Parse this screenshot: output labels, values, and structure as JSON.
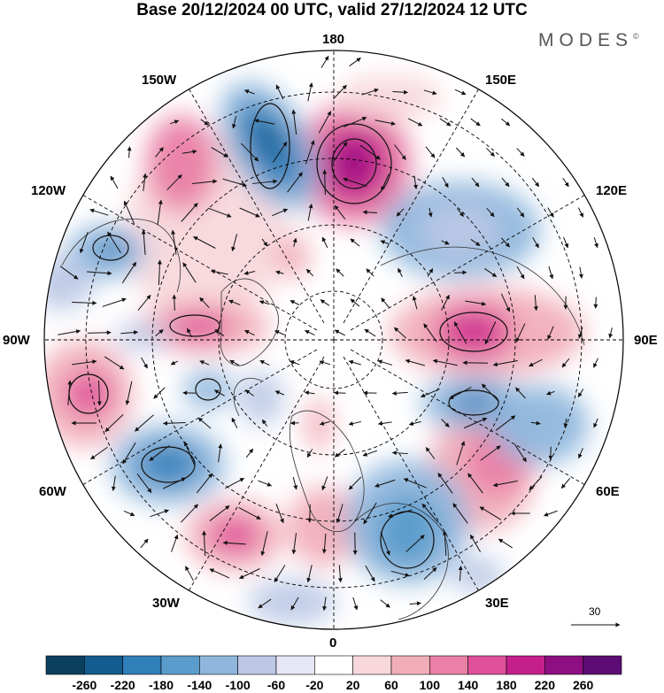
{
  "title": "Base 20/12/2024 00 UTC, valid 27/12/2024 12 UTC",
  "brand": "MODES",
  "brand_mark": "©",
  "longitude_labels": {
    "lon_180": "180",
    "lon_150e": "150E",
    "lon_120e": "120E",
    "lon_90e": "90E",
    "lon_60e": "60E",
    "lon_30e": "30E",
    "lon_0": "0",
    "lon_30w": "30W",
    "lon_60w": "60W",
    "lon_90w": "90W",
    "lon_120w": "120W",
    "lon_150w": "150W"
  },
  "reference_vector": {
    "label": "30"
  },
  "colorbar": {
    "labels": [
      "-260",
      "-220",
      "-180",
      "-140",
      "-100",
      "-60",
      "-20",
      "20",
      "60",
      "100",
      "140",
      "180",
      "220",
      "260"
    ],
    "colors": [
      "#0b3f5f",
      "#125c8f",
      "#2f7fb9",
      "#5a9ccb",
      "#8fb6dc",
      "#bcc8e6",
      "#e6e6f4",
      "#ffffff",
      "#f8d8dc",
      "#f1aeba",
      "#ea80a6",
      "#e0509a",
      "#c41f8c",
      "#8e0f82",
      "#5c0c74"
    ]
  },
  "colors": {
    "title": "#000000",
    "brand": "#555555",
    "coast": "#333333",
    "contour": "#111111"
  },
  "anomalies": [
    {
      "sign": "positive",
      "level": 260,
      "region": "east Siberia / near 170E"
    },
    {
      "sign": "positive",
      "level": 140,
      "region": "Siberia near 90E"
    },
    {
      "sign": "negative",
      "level": -180,
      "region": "Bering / Alaska near 160W"
    },
    {
      "sign": "negative",
      "level": -140,
      "region": "Central Asia near 60E"
    },
    {
      "sign": "negative",
      "level": -140,
      "region": "North Atlantic near 60W"
    },
    {
      "sign": "positive",
      "level": 140,
      "region": "North America near 90W"
    },
    {
      "sign": "negative",
      "level": -140,
      "region": "Eastern Europe near 30E"
    },
    {
      "sign": "positive",
      "level": 140,
      "region": "Eastern Pacific near 150W"
    }
  ]
}
